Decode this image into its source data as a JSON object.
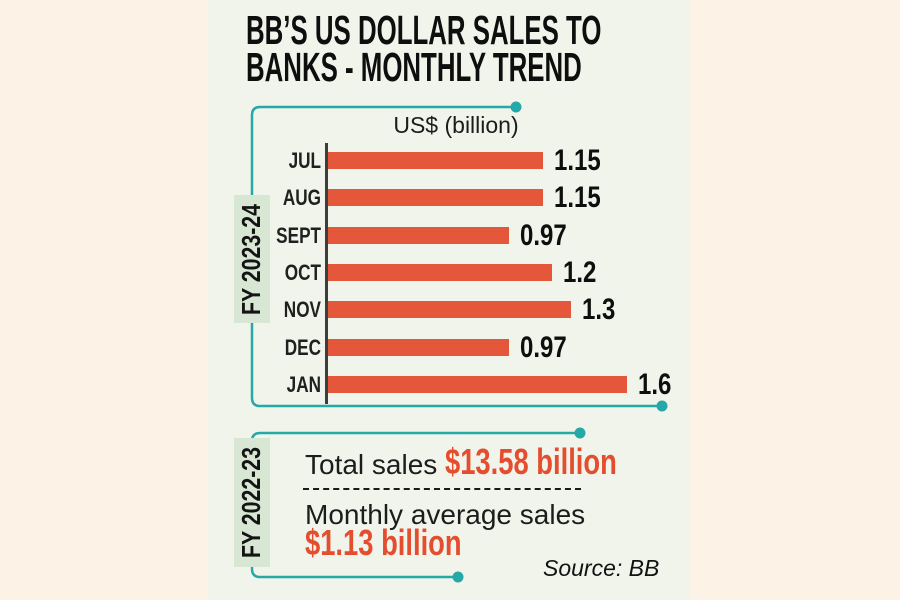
{
  "title": {
    "line1": "BB’S US DOLLAR SALES TO",
    "line2": "BANKS - MONTHLY TREND"
  },
  "chart_data": {
    "type": "bar",
    "orientation": "horizontal",
    "title": "BB’S US DOLLAR SALES TO BANKS - MONTHLY TREND",
    "axis_label": "US$ (billion)",
    "period_label": "FY 2023-24",
    "categories": [
      "JUL",
      "AUG",
      "SEPT",
      "OCT",
      "NOV",
      "DEC",
      "JAN"
    ],
    "values": [
      1.15,
      1.15,
      0.97,
      1.2,
      1.3,
      0.97,
      1.6
    ],
    "value_labels": [
      "1.15",
      "1.15",
      "0.97",
      "1.2",
      "1.3",
      "0.97",
      "1.6"
    ],
    "xlim": [
      0,
      1.7
    ],
    "grid": false,
    "legend": false,
    "bar_color": "#e4573a"
  },
  "summary": {
    "period_label": "FY 2022-23",
    "total_sales_label": "Total sales ",
    "total_sales_value": "$13.58 billion",
    "monthly_avg_label": "Monthly average sales",
    "monthly_avg_value": "$1.13 billion"
  },
  "source": "Source: BB",
  "colors": {
    "outer_background": "#fcf3e6",
    "panel_background": "#f1f4eb",
    "bar": "#e4573a",
    "highlight_text": "#e44d2e",
    "bracket_teal": "#25a8a8",
    "fy_label_background": "#d8e7d3",
    "text": "#151515"
  }
}
